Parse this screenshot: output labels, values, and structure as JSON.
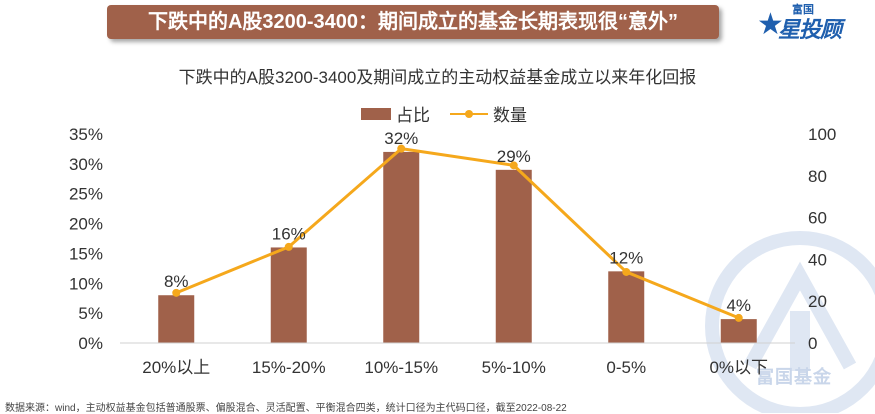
{
  "banner_title": "下跌中的A股3200-3400：期间成立的基金长期表现很“意外”",
  "brand": {
    "logo_small": "富国",
    "logo_main": "星投顾",
    "watermark_text": "富国基金",
    "color": "#1f5fae"
  },
  "chart_data": {
    "type": "bar+line",
    "title": "下跌中的A股3200-3400及期间成立的主动权益基金成立以来年化回报",
    "categories": [
      "20%以上",
      "15%-20%",
      "10%-15%",
      "5%-10%",
      "0-5%",
      "0%以下"
    ],
    "series": [
      {
        "name": "占比",
        "type": "bar",
        "axis": "left",
        "values": [
          8,
          16,
          32,
          29,
          12,
          4
        ],
        "labels": [
          "8%",
          "16%",
          "32%",
          "29%",
          "12%",
          "4%"
        ],
        "color": "#a0614a"
      },
      {
        "name": "数量",
        "type": "line",
        "axis": "right",
        "values": [
          24,
          46,
          93,
          85,
          34,
          12
        ],
        "color": "#f5a81c"
      }
    ],
    "y_left": {
      "min": 0,
      "max": 35,
      "ticks": [
        "0%",
        "5%",
        "10%",
        "15%",
        "20%",
        "25%",
        "30%",
        "35%"
      ]
    },
    "y_right": {
      "min": 0,
      "max": 100,
      "ticks": [
        "0",
        "20",
        "40",
        "60",
        "80",
        "100"
      ]
    },
    "grid": false,
    "legend_position": "top-center"
  },
  "footnote": "数据来源：wind，主动权益基金包括普通股票、偏股混合、灵活配置、平衡混合四类，统计口径为主代码口径，截至2022-08-22"
}
